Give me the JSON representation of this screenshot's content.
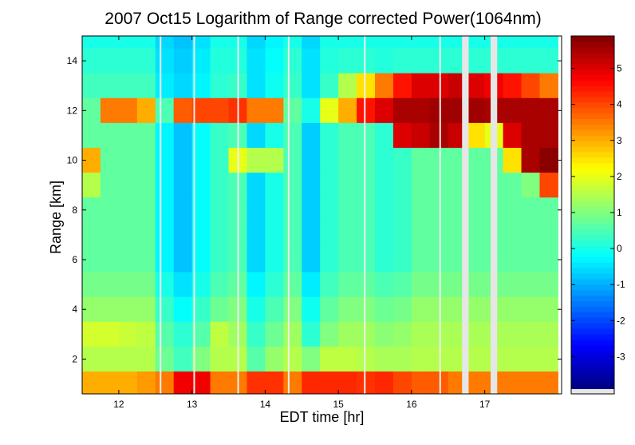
{
  "chart_data": {
    "type": "heatmap",
    "title": "2007 Oct15  Logarithm of Range corrected Power(1064nm)",
    "xlabel": "EDT time [hr]",
    "ylabel": "Range [km]",
    "xlim": [
      11.5,
      18.05
    ],
    "ylim": [
      0.6,
      15
    ],
    "xticks": [
      "12",
      "13",
      "14",
      "15",
      "16",
      "17"
    ],
    "yticks": [
      "2",
      "4",
      "6",
      "8",
      "10",
      "12",
      "14"
    ],
    "colorbar": {
      "colormap": "jet",
      "clim": [
        -3.9,
        5.9
      ],
      "ticks": [
        "-3",
        "-2",
        "-1",
        "0",
        "1",
        "2",
        "3",
        "4",
        "5"
      ],
      "missing_color": "#e6e6e6"
    },
    "time_bins_start_hr": [
      11.5,
      11.75,
      12.0,
      12.25,
      12.5,
      12.75,
      13.0,
      13.25,
      13.5,
      13.75,
      14.0,
      14.25,
      14.5,
      14.75,
      15.0,
      15.25,
      15.5,
      15.75,
      16.0,
      16.25,
      16.5,
      16.75,
      17.0,
      17.25,
      17.5,
      17.75
    ],
    "range_bins_center_km": [
      15,
      14,
      13,
      12,
      11,
      10,
      9,
      8,
      7,
      6,
      5,
      4,
      3,
      2,
      1
    ],
    "values": [
      [
        0,
        0,
        0,
        0,
        -0.6,
        -0.8,
        -0.5,
        0,
        0,
        -0.6,
        -0.3,
        0,
        -0.6,
        0,
        0,
        0,
        0,
        0,
        0,
        0,
        0,
        0,
        0,
        0,
        0,
        0
      ],
      [
        0.2,
        0.2,
        0.2,
        0.2,
        -0.5,
        -0.7,
        -0.4,
        0.1,
        0.1,
        -0.5,
        -0.2,
        0.2,
        -0.5,
        0.1,
        0.2,
        0.2,
        0.1,
        0.2,
        0.2,
        0.2,
        0.2,
        0.2,
        0.2,
        0.2,
        0.2,
        0.2
      ],
      [
        0.4,
        0.4,
        0.4,
        0.4,
        -0.4,
        -0.6,
        -0.3,
        0.2,
        0.3,
        -0.5,
        -0.1,
        0.3,
        -0.5,
        0.3,
        1.5,
        2.5,
        3.5,
        4.5,
        5.0,
        5.0,
        5.2,
        5.0,
        4.8,
        4.5,
        4.0,
        3.5
      ],
      [
        0.7,
        3.5,
        3.5,
        3.0,
        0.5,
        3.8,
        4.0,
        4.0,
        4.2,
        3.5,
        3.5,
        0.7,
        0.0,
        2.0,
        3.0,
        4.5,
        5.0,
        5.5,
        5.5,
        5.6,
        5.6,
        5.6,
        5.5,
        5.5,
        5.5,
        5.5
      ],
      [
        0.7,
        0.7,
        0.7,
        0.7,
        -0.3,
        -0.8,
        -0.2,
        0.3,
        0.5,
        -0.6,
        0.0,
        0.5,
        -0.7,
        0.2,
        0.5,
        0.5,
        0.2,
        5.0,
        5.2,
        5.5,
        5.2,
        2.5,
        2.0,
        5.0,
        5.5,
        5.5
      ],
      [
        3.0,
        0.7,
        0.7,
        0.7,
        -0.3,
        -0.8,
        -0.2,
        0.3,
        2.0,
        1.5,
        1.5,
        0.5,
        -0.7,
        0.2,
        0.5,
        0.5,
        0.2,
        0.3,
        0.7,
        0.7,
        0.7,
        0.7,
        0.7,
        2.5,
        5.5,
        5.8
      ],
      [
        1.5,
        0.7,
        0.7,
        0.7,
        -0.3,
        -0.8,
        -0.2,
        0.3,
        0.5,
        -0.6,
        0.0,
        0.5,
        -0.7,
        0.2,
        0.5,
        0.5,
        0.2,
        0.3,
        0.7,
        0.7,
        0.7,
        0.7,
        0.7,
        0.7,
        1.0,
        4.0
      ],
      [
        0.7,
        0.7,
        0.7,
        0.7,
        -0.3,
        -0.8,
        -0.2,
        0.3,
        0.5,
        -0.6,
        0.0,
        0.5,
        -0.7,
        0.2,
        0.5,
        0.5,
        0.2,
        0.3,
        0.7,
        0.7,
        0.7,
        0.7,
        0.7,
        0.7,
        0.7,
        0.7
      ],
      [
        0.7,
        0.7,
        0.7,
        0.7,
        -0.3,
        -0.8,
        -0.2,
        0.3,
        0.5,
        -0.6,
        0.0,
        0.5,
        -0.7,
        0.2,
        0.5,
        0.5,
        0.2,
        0.3,
        0.7,
        0.7,
        0.7,
        0.7,
        0.7,
        0.7,
        0.7,
        0.7
      ],
      [
        0.7,
        0.7,
        0.7,
        0.7,
        -0.3,
        -0.8,
        -0.2,
        0.3,
        0.5,
        -0.6,
        0.0,
        0.5,
        -0.7,
        0.2,
        0.5,
        0.5,
        0.2,
        0.3,
        0.7,
        0.7,
        0.7,
        0.7,
        0.7,
        0.7,
        0.7,
        0.7
      ],
      [
        0.9,
        0.9,
        0.9,
        0.9,
        0.0,
        -0.5,
        0.0,
        0.5,
        0.7,
        -0.3,
        0.2,
        0.7,
        -0.4,
        0.4,
        0.7,
        0.7,
        0.5,
        0.6,
        0.9,
        0.9,
        0.9,
        0.9,
        0.9,
        0.9,
        0.9,
        0.9
      ],
      [
        1.2,
        1.2,
        1.2,
        1.2,
        0.3,
        -0.2,
        0.3,
        0.8,
        1.0,
        0.0,
        0.5,
        1.0,
        -0.1,
        0.7,
        1.0,
        1.0,
        0.8,
        0.9,
        1.2,
        1.2,
        1.2,
        1.2,
        1.2,
        1.2,
        1.2,
        1.2
      ],
      [
        1.8,
        1.8,
        1.7,
        1.6,
        0.6,
        0.2,
        0.6,
        1.6,
        1.3,
        0.3,
        0.8,
        1.3,
        0.2,
        1.0,
        1.3,
        1.3,
        1.1,
        1.2,
        1.4,
        1.4,
        1.4,
        1.4,
        1.4,
        1.4,
        1.4,
        1.4
      ],
      [
        1.5,
        1.5,
        1.5,
        1.5,
        0.8,
        0.4,
        1.0,
        1.5,
        1.5,
        0.6,
        1.2,
        1.5,
        1.0,
        1.6,
        1.6,
        1.5,
        1.4,
        1.4,
        1.5,
        1.5,
        1.5,
        1.5,
        1.5,
        1.5,
        1.5,
        1.5
      ],
      [
        3.0,
        3.0,
        3.0,
        3.2,
        3.5,
        4.8,
        4.8,
        3.5,
        3.5,
        4.2,
        4.2,
        3.5,
        4.3,
        4.3,
        4.3,
        4.2,
        4.3,
        4.0,
        3.8,
        3.8,
        3.5,
        3.5,
        3.5,
        3.5,
        3.5,
        3.5
      ]
    ],
    "missing_data_hr": [
      [
        16.69,
        16.78
      ],
      [
        17.08,
        17.17
      ]
    ],
    "dropout_lines_hr": [
      12.56,
      13.02,
      13.62,
      14.31,
      15.35,
      16.38
    ],
    "grid": false
  }
}
